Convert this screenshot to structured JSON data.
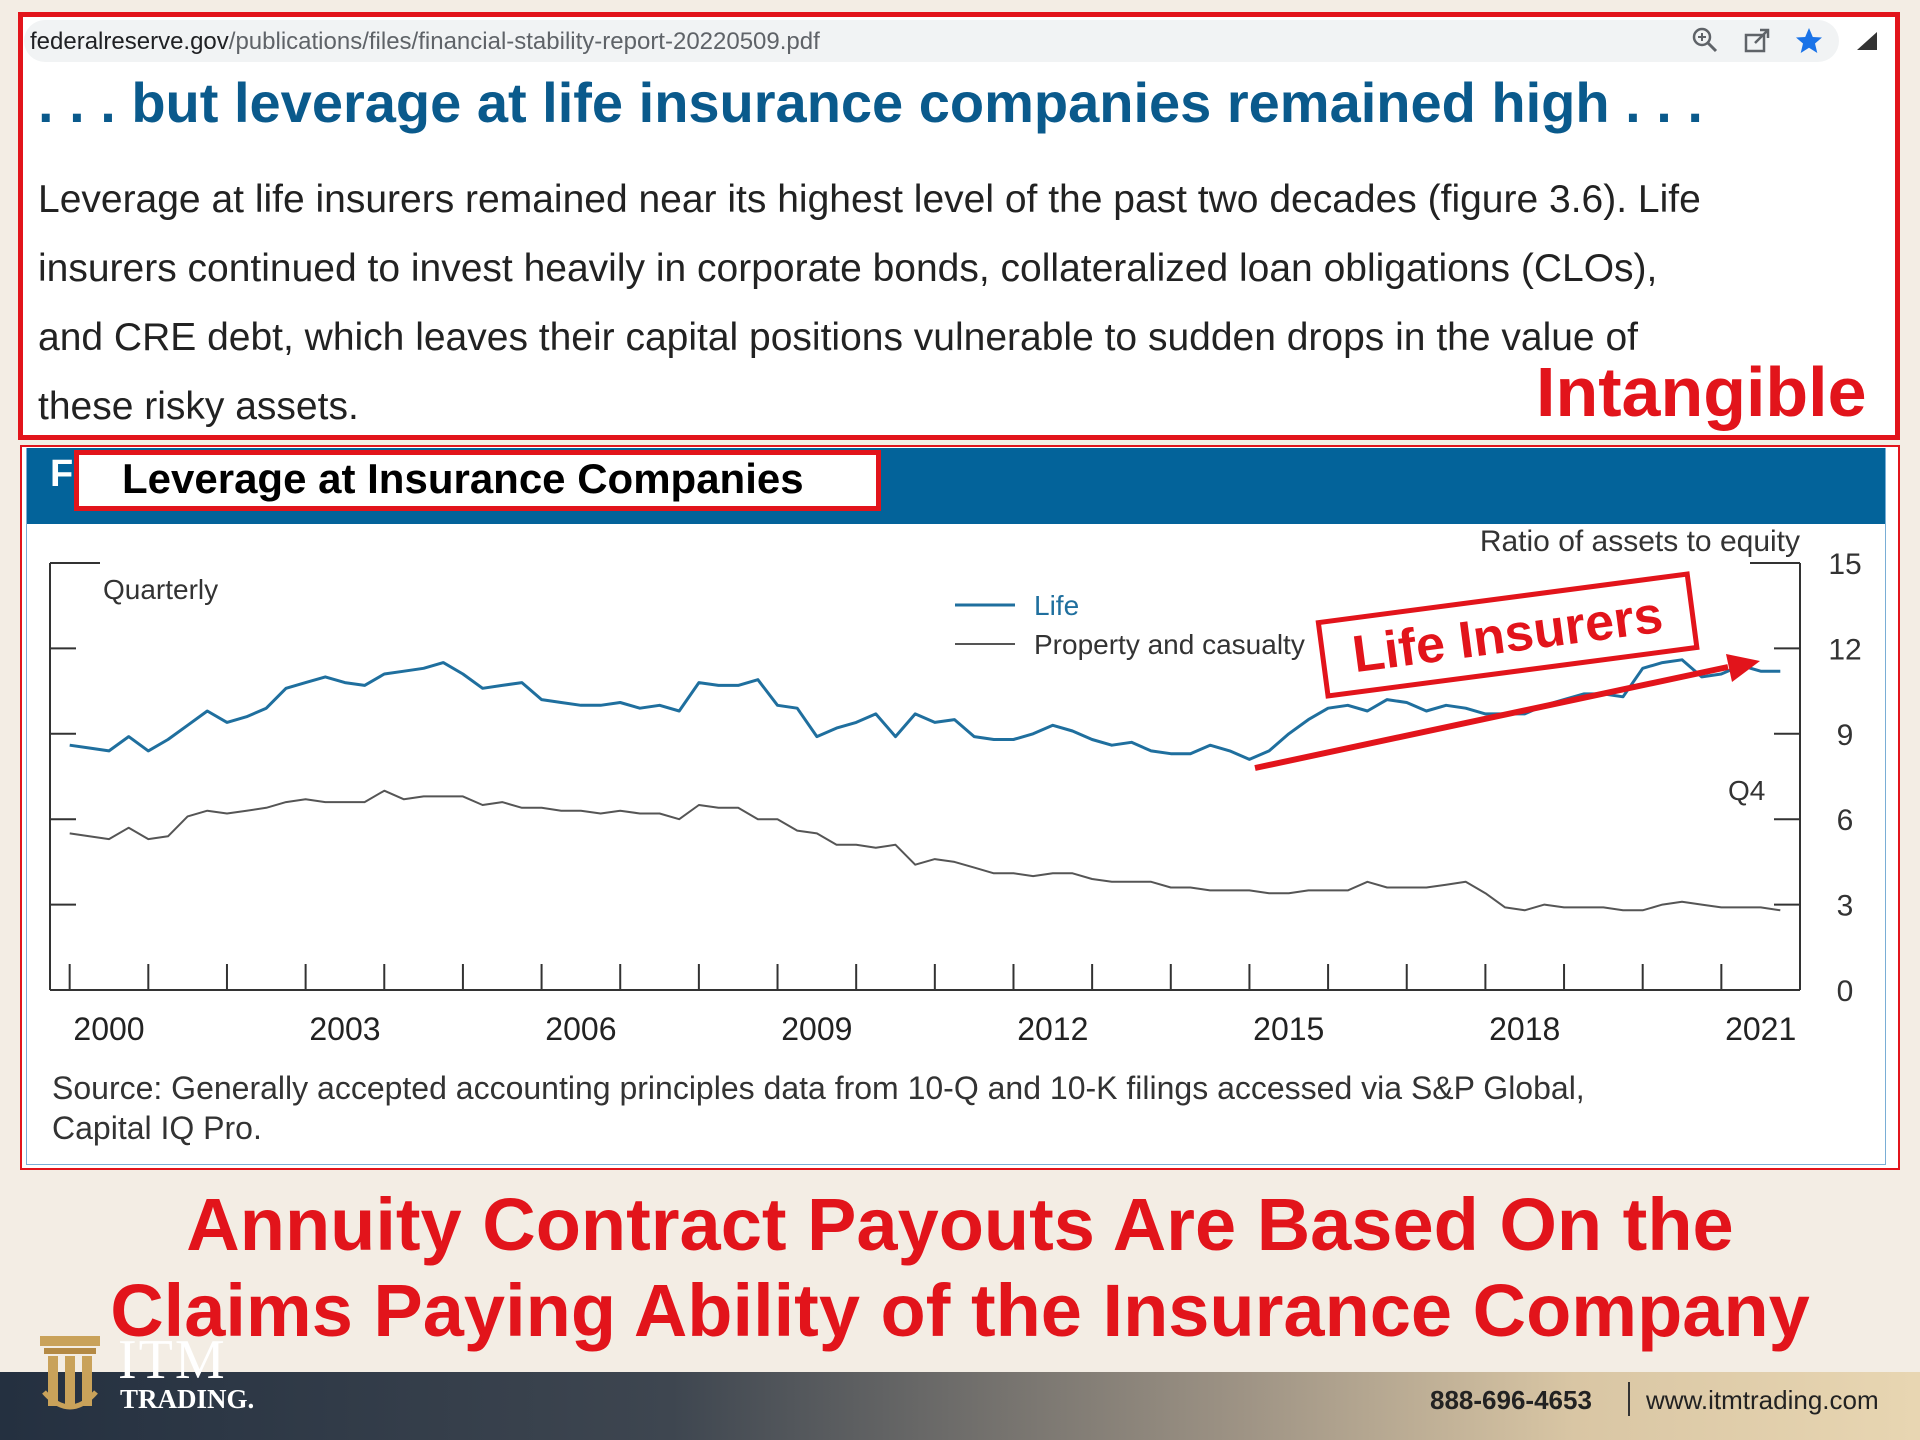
{
  "browser": {
    "url_host": "federalreserve.gov",
    "url_path": "/publications/files/financial-stability-report-20220509.pdf",
    "icons": [
      "zoom-icon",
      "share-icon",
      "star-icon",
      "signal-icon"
    ]
  },
  "headline": ". . . but leverage at life insurance companies remained high . . .",
  "paragraph_lines": [
    "Leverage at life insurers remained near its highest level of the past two decades (figure 3.6). Life",
    "insurers continued to invest heavily in corporate bonds, collateralized loan obligations (CLOs),",
    "and CRE debt, which leaves their capital positions vulnerable to sudden drops in the value of",
    "these risky assets."
  ],
  "annotation_intangible": "Intangible",
  "figure": {
    "bar_letter": "F",
    "title": "Leverage at Insurance Companies",
    "source_line1": "Source: Generally accepted accounting principles data from 10-Q and 10-K filings accessed via S&P Global,",
    "source_line2": "Capital IQ Pro."
  },
  "chart_data": {
    "type": "line",
    "title": "Leverage at Insurance Companies",
    "frequency_label": "Quarterly",
    "ylabel": "Ratio of assets to equity",
    "ylim": [
      0,
      15
    ],
    "yticks": [
      0,
      3,
      6,
      9,
      12,
      15
    ],
    "xlim": [
      1999.75,
      2022.0
    ],
    "xticks": [
      2000,
      2003,
      2006,
      2009,
      2012,
      2015,
      2018,
      2021
    ],
    "end_label": "Q4",
    "annotation": "Life Insurers",
    "annotation_color": "#e2141b",
    "series": [
      {
        "name": "Life",
        "color": "#1f6f9e",
        "x": [
          2000.0,
          2000.25,
          2000.5,
          2000.75,
          2001.0,
          2001.25,
          2001.5,
          2001.75,
          2002.0,
          2002.25,
          2002.5,
          2002.75,
          2003.0,
          2003.25,
          2003.5,
          2003.75,
          2004.0,
          2004.25,
          2004.5,
          2004.75,
          2005.0,
          2005.25,
          2005.5,
          2005.75,
          2006.0,
          2006.25,
          2006.5,
          2006.75,
          2007.0,
          2007.25,
          2007.5,
          2007.75,
          2008.0,
          2008.25,
          2008.5,
          2008.75,
          2009.0,
          2009.25,
          2009.5,
          2009.75,
          2010.0,
          2010.25,
          2010.5,
          2010.75,
          2011.0,
          2011.25,
          2011.5,
          2011.75,
          2012.0,
          2012.25,
          2012.5,
          2012.75,
          2013.0,
          2013.25,
          2013.5,
          2013.75,
          2014.0,
          2014.25,
          2014.5,
          2014.75,
          2015.0,
          2015.25,
          2015.5,
          2015.75,
          2016.0,
          2016.25,
          2016.5,
          2016.75,
          2017.0,
          2017.25,
          2017.5,
          2017.75,
          2018.0,
          2018.25,
          2018.5,
          2018.75,
          2019.0,
          2019.25,
          2019.5,
          2019.75,
          2020.0,
          2020.25,
          2020.5,
          2020.75,
          2021.0,
          2021.25,
          2021.5,
          2021.75
        ],
        "values": [
          8.6,
          8.5,
          8.4,
          8.9,
          8.4,
          8.8,
          9.3,
          9.8,
          9.4,
          9.6,
          9.9,
          10.6,
          10.8,
          11.0,
          10.8,
          10.7,
          11.1,
          11.2,
          11.3,
          11.5,
          11.1,
          10.6,
          10.7,
          10.8,
          10.2,
          10.1,
          10.0,
          10.0,
          10.1,
          9.9,
          10.0,
          9.8,
          10.8,
          10.7,
          10.7,
          10.9,
          10.0,
          9.9,
          8.9,
          9.2,
          9.4,
          9.7,
          8.9,
          9.7,
          9.4,
          9.5,
          8.9,
          8.8,
          8.8,
          9.0,
          9.3,
          9.1,
          8.8,
          8.6,
          8.7,
          8.4,
          8.3,
          8.3,
          8.6,
          8.4,
          8.1,
          8.4,
          9.0,
          9.5,
          9.9,
          10.0,
          9.8,
          10.2,
          10.1,
          9.8,
          10.0,
          9.9,
          9.7,
          9.7,
          9.7,
          10.0,
          10.2,
          10.4,
          10.4,
          10.3,
          11.3,
          11.5,
          11.6,
          11.0,
          11.1,
          11.4,
          11.2,
          11.2
        ]
      },
      {
        "name": "Property and casualty",
        "color": "#555555",
        "x": [
          2000.0,
          2000.25,
          2000.5,
          2000.75,
          2001.0,
          2001.25,
          2001.5,
          2001.75,
          2002.0,
          2002.25,
          2002.5,
          2002.75,
          2003.0,
          2003.25,
          2003.5,
          2003.75,
          2004.0,
          2004.25,
          2004.5,
          2004.75,
          2005.0,
          2005.25,
          2005.5,
          2005.75,
          2006.0,
          2006.25,
          2006.5,
          2006.75,
          2007.0,
          2007.25,
          2007.5,
          2007.75,
          2008.0,
          2008.25,
          2008.5,
          2008.75,
          2009.0,
          2009.25,
          2009.5,
          2009.75,
          2010.0,
          2010.25,
          2010.5,
          2010.75,
          2011.0,
          2011.25,
          2011.5,
          2011.75,
          2012.0,
          2012.25,
          2012.5,
          2012.75,
          2013.0,
          2013.25,
          2013.5,
          2013.75,
          2014.0,
          2014.25,
          2014.5,
          2014.75,
          2015.0,
          2015.25,
          2015.5,
          2015.75,
          2016.0,
          2016.25,
          2016.5,
          2016.75,
          2017.0,
          2017.25,
          2017.5,
          2017.75,
          2018.0,
          2018.25,
          2018.5,
          2018.75,
          2019.0,
          2019.25,
          2019.5,
          2019.75,
          2020.0,
          2020.25,
          2020.5,
          2020.75,
          2021.0,
          2021.25,
          2021.5,
          2021.75
        ],
        "values": [
          5.5,
          5.4,
          5.3,
          5.7,
          5.3,
          5.4,
          6.1,
          6.3,
          6.2,
          6.3,
          6.4,
          6.6,
          6.7,
          6.6,
          6.6,
          6.6,
          7.0,
          6.7,
          6.8,
          6.8,
          6.8,
          6.5,
          6.6,
          6.4,
          6.4,
          6.3,
          6.3,
          6.2,
          6.3,
          6.2,
          6.2,
          6.0,
          6.5,
          6.4,
          6.4,
          6.0,
          6.0,
          5.6,
          5.5,
          5.1,
          5.1,
          5.0,
          5.1,
          4.4,
          4.6,
          4.5,
          4.3,
          4.1,
          4.1,
          4.0,
          4.1,
          4.1,
          3.9,
          3.8,
          3.8,
          3.8,
          3.6,
          3.6,
          3.5,
          3.5,
          3.5,
          3.4,
          3.4,
          3.5,
          3.5,
          3.5,
          3.8,
          3.6,
          3.6,
          3.6,
          3.7,
          3.8,
          3.4,
          2.9,
          2.8,
          3.0,
          2.9,
          2.9,
          2.9,
          2.8,
          2.8,
          3.0,
          3.1,
          3.0,
          2.9,
          2.9,
          2.9,
          2.8
        ]
      }
    ]
  },
  "bottom_lines": [
    "Annuity Contract Payouts Are Based On the",
    "Claims Paying Ability of the Insurance Company"
  ],
  "footer": {
    "logo_main": "ITM",
    "logo_sub": "TRADING.",
    "phone": "888-696-4653",
    "website": "www.itmtrading.com"
  }
}
